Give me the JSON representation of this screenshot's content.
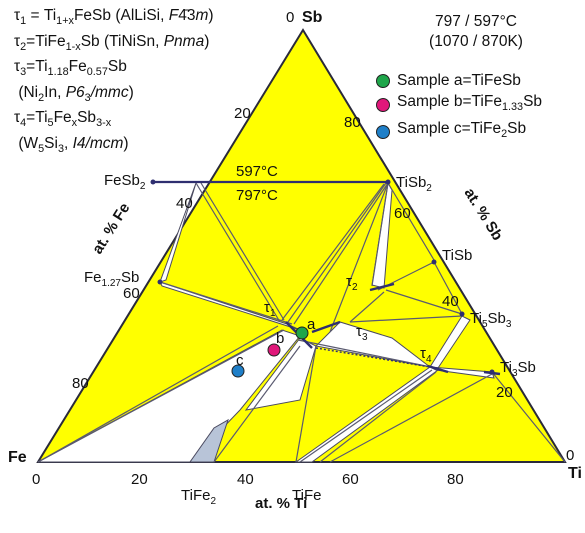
{
  "legend": {
    "tau1": [
      "τ",
      "1",
      " = Ti",
      "1+x",
      "FeSb (AlLiSi, ",
      "F",
      "4̄",
      "3",
      "m",
      ")"
    ],
    "tau2": [
      "τ",
      "2",
      "=TiFe",
      "1-x",
      "Sb (TiNiSn, ",
      "Pnma",
      ")"
    ],
    "tau3a": [
      "τ",
      "3",
      "=Ti",
      "1.18",
      "Fe",
      "0.57",
      "Sb"
    ],
    "tau3b": [
      "(Ni",
      "2",
      "In, ",
      "P6",
      "3",
      "/mmc",
      ")"
    ],
    "tau4a": [
      "τ",
      "4",
      "=Ti",
      "5",
      "Fe",
      "x",
      "Sb",
      "3-x"
    ],
    "tau4b": [
      "(W",
      "5",
      "Si",
      "3",
      ", ",
      "I4/mcm",
      ")"
    ]
  },
  "temperatures": {
    "celsius": "797 / 597°C",
    "kelvin": "(1070 / 870K)"
  },
  "samples": [
    {
      "label": "Sample a=TiFeSb",
      "color": "#1fa64a",
      "point_label": "a"
    },
    {
      "label_main": "Sample b=TiFe",
      "label_sub": "1.33",
      "label_end": "Sb",
      "color": "#e0177a",
      "point_label": "b"
    },
    {
      "label_main": "Sample c=TiFe",
      "label_sub": "2",
      "label_end": "Sb",
      "color": "#1f7fc8",
      "point_label": "c"
    }
  ],
  "corners": {
    "top": "Sb",
    "top_zero": "0",
    "left": "Fe",
    "right": "Ti",
    "right_zero": "0"
  },
  "axes": {
    "fe": "at. % Fe",
    "sb": "at. % Sb",
    "ti": "at. % Ti",
    "fe_ticks": [
      "20",
      "40",
      "60",
      "80"
    ],
    "sb_ticks": [
      "80",
      "60",
      "40",
      "20"
    ],
    "ti_ticks": [
      "0",
      "20",
      "40",
      "60",
      "80"
    ]
  },
  "phases": {
    "fesb2": [
      "FeSb",
      "2"
    ],
    "fe127sb": [
      "Fe",
      "1.27",
      "Sb"
    ],
    "tisb2": [
      "TiSb",
      "2"
    ],
    "tisb": "TiSb",
    "ti5sb3": [
      "Ti",
      "5",
      "Sb",
      "3"
    ],
    "ti3sb": [
      "Ti",
      "3",
      "Sb"
    ],
    "tife2": [
      "TiFe",
      "2"
    ],
    "tife": "TiFe",
    "tau1": [
      "τ",
      "1"
    ],
    "tau2": [
      "τ",
      "2"
    ],
    "tau3": [
      "τ",
      "3"
    ],
    "tau4": [
      "τ",
      "4"
    ]
  },
  "isotherm_labels": {
    "upper": "597°C",
    "lower": "797°C"
  },
  "colors": {
    "field": "#ffff00",
    "edge": "#3a3a5a",
    "tie": "#5a5a70",
    "tife2_region": "#b8c4d8"
  }
}
